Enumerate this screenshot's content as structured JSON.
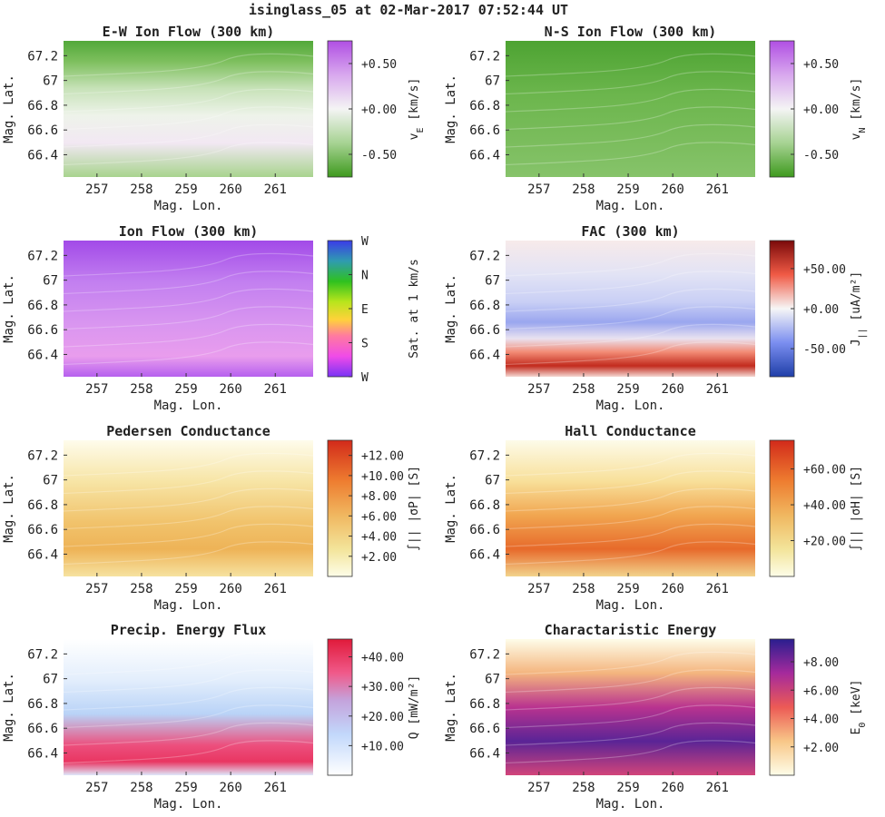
{
  "figure_title": "isinglass_05 at 02-Mar-2017 07:52:44 UT",
  "chart_data": [
    {
      "type": "heatmap",
      "title": "E-W Ion Flow (300 km)",
      "xlabel": "Mag. Lon.",
      "ylabel": "Mag. Lat.",
      "xticks": [
        "257",
        "258",
        "259",
        "260",
        "261"
      ],
      "yticks": [
        "66.4",
        "66.6",
        "66.8",
        "67",
        "67.2"
      ],
      "xlim": [
        256.25,
        261.85
      ],
      "ylim": [
        66.22,
        67.32
      ],
      "colormap": "green-white-purple",
      "colorbar": {
        "label": "v",
        "sub": "E",
        "unit": "[km/s]",
        "ticks": [
          "-0.50",
          "+0.00",
          "+0.50"
        ],
        "range": [
          -0.75,
          0.75
        ]
      }
    },
    {
      "type": "heatmap",
      "title": "N-S Ion Flow (300 km)",
      "xlabel": "Mag. Lon.",
      "ylabel": "Mag. Lat.",
      "xticks": [
        "257",
        "258",
        "259",
        "260",
        "261"
      ],
      "yticks": [
        "66.4",
        "66.6",
        "66.8",
        "67",
        "67.2"
      ],
      "xlim": [
        256.25,
        261.85
      ],
      "ylim": [
        66.22,
        67.32
      ],
      "colormap": "green-white-purple",
      "colorbar": {
        "label": "v",
        "sub": "N",
        "unit": "[km/s]",
        "ticks": [
          "-0.50",
          "+0.00",
          "+0.50"
        ],
        "range": [
          -0.75,
          0.75
        ]
      }
    },
    {
      "type": "heatmap",
      "title": "Ion Flow (300 km)",
      "xlabel": "Mag. Lon.",
      "ylabel": "Mag. Lat.",
      "xticks": [
        "257",
        "258",
        "259",
        "260",
        "261"
      ],
      "yticks": [
        "66.4",
        "66.6",
        "66.8",
        "67",
        "67.2"
      ],
      "xlim": [
        256.25,
        261.85
      ],
      "ylim": [
        66.22,
        67.32
      ],
      "colormap": "hue-direction",
      "colorbar": {
        "label": "Sat. at 1 km/s",
        "sub": "",
        "unit": "",
        "ticks": [
          "W",
          "S",
          "E",
          "N",
          "W"
        ],
        "range": [
          0,
          4
        ]
      }
    },
    {
      "type": "heatmap",
      "title": "FAC (300 km)",
      "xlabel": "Mag. Lon.",
      "ylabel": "Mag. Lat.",
      "xticks": [
        "257",
        "258",
        "259",
        "260",
        "261"
      ],
      "yticks": [
        "66.4",
        "66.6",
        "66.8",
        "67",
        "67.2"
      ],
      "xlim": [
        256.25,
        261.85
      ],
      "ylim": [
        66.22,
        67.32
      ],
      "colormap": "blue-white-red",
      "colorbar": {
        "label": "J",
        "sub": "||",
        "unit": "[uA/m²]",
        "ticks": [
          "-50.00",
          "+0.00",
          "+50.00"
        ],
        "range": [
          -85,
          85
        ]
      }
    },
    {
      "type": "heatmap",
      "title": "Pedersen Conductance",
      "xlabel": "Mag. Lon.",
      "ylabel": "Mag. Lat.",
      "xticks": [
        "257",
        "258",
        "259",
        "260",
        "261"
      ],
      "yticks": [
        "66.4",
        "66.6",
        "66.8",
        "67",
        "67.2"
      ],
      "xlim": [
        256.25,
        261.85
      ],
      "ylim": [
        66.22,
        67.32
      ],
      "colormap": "yellow-orange-red",
      "colorbar": {
        "label": "∫|| |σP| [S]",
        "sub": "",
        "unit": "",
        "ticks": [
          "+2.00",
          "+4.00",
          "+6.00",
          "+8.00",
          "+10.00",
          "+12.00"
        ],
        "range": [
          0,
          13.5
        ]
      }
    },
    {
      "type": "heatmap",
      "title": "Hall Conductance",
      "xlabel": "Mag. Lon.",
      "ylabel": "Mag. Lat.",
      "xticks": [
        "257",
        "258",
        "259",
        "260",
        "261"
      ],
      "yticks": [
        "66.4",
        "66.6",
        "66.8",
        "67",
        "67.2"
      ],
      "xlim": [
        256.25,
        261.85
      ],
      "ylim": [
        66.22,
        67.32
      ],
      "colormap": "yellow-orange-red",
      "colorbar": {
        "label": "∫|| |σH| [S]",
        "sub": "",
        "unit": "",
        "ticks": [
          "+20.00",
          "+40.00",
          "+60.00"
        ],
        "range": [
          0,
          76
        ]
      }
    },
    {
      "type": "heatmap",
      "title": "Precip. Energy Flux",
      "xlabel": "Mag. Lon.",
      "ylabel": "Mag. Lat.",
      "xticks": [
        "257",
        "258",
        "259",
        "260",
        "261"
      ],
      "yticks": [
        "66.4",
        "66.6",
        "66.8",
        "67",
        "67.2"
      ],
      "xlim": [
        256.25,
        261.85
      ],
      "ylim": [
        66.22,
        67.32
      ],
      "colormap": "white-blue-red",
      "colorbar": {
        "label": "Q [mW/m²]",
        "sub": "",
        "unit": "",
        "ticks": [
          "+10.00",
          "+20.00",
          "+30.00",
          "+40.00"
        ],
        "range": [
          0,
          46
        ]
      }
    },
    {
      "type": "heatmap",
      "title": "Charactaristic Energy",
      "xlabel": "Mag. Lon.",
      "ylabel": "Mag. Lat.",
      "xticks": [
        "257",
        "258",
        "259",
        "260",
        "261"
      ],
      "yticks": [
        "66.4",
        "66.6",
        "66.8",
        "67",
        "67.2"
      ],
      "xlim": [
        256.25,
        261.85
      ],
      "ylim": [
        66.22,
        67.32
      ],
      "colormap": "yellow-red-purple-blue",
      "colorbar": {
        "label": "E",
        "sub": "0",
        "unit": "[keV]",
        "ticks": [
          "+2.00",
          "+4.00",
          "+6.00",
          "+8.00"
        ],
        "range": [
          0,
          9.6
        ]
      }
    }
  ]
}
